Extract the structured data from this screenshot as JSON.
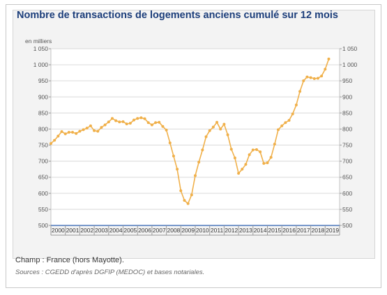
{
  "colors": {
    "line": "#f0b04a",
    "title": "#1b3d7a",
    "grid": "#dadada",
    "axis": "#2a5eb0"
  },
  "chart_data": {
    "type": "line",
    "title": "Nombre de transactions de logements anciens cumulé sur 12 mois",
    "unit_label": "en milliers",
    "y_range": [
      500,
      1050
    ],
    "y_ticks": [
      500,
      550,
      600,
      650,
      700,
      750,
      800,
      850,
      900,
      950,
      1000,
      1050
    ],
    "y_tick_labels": [
      "500",
      "550",
      "600",
      "650",
      "700",
      "750",
      "800",
      "850",
      "900",
      "950",
      "1 000",
      "1 050"
    ],
    "x_range": [
      2000,
      2020
    ],
    "x_labels": [
      "2000",
      "2001",
      "2002",
      "2003",
      "2004",
      "2005",
      "2006",
      "2007",
      "2008",
      "2009",
      "2010",
      "2011",
      "2012",
      "2013",
      "2014",
      "2015",
      "2016",
      "2017",
      "2018",
      "2019"
    ],
    "grid": "horizontal",
    "legend": "none",
    "series": [
      {
        "x": [
          2000.0,
          2000.25,
          2000.5,
          2000.75,
          2001.0,
          2001.25,
          2001.5,
          2001.75,
          2002.0,
          2002.25,
          2002.5,
          2002.75,
          2003.0,
          2003.25,
          2003.5,
          2003.75,
          2004.0,
          2004.25,
          2004.5,
          2004.75,
          2005.0,
          2005.25,
          2005.5,
          2005.75,
          2006.0,
          2006.25,
          2006.5,
          2006.75,
          2007.0,
          2007.25,
          2007.5,
          2007.75,
          2008.0,
          2008.25,
          2008.5,
          2008.75,
          2009.0,
          2009.25,
          2009.5,
          2009.75,
          2010.0,
          2010.25,
          2010.5,
          2010.75,
          2011.0,
          2011.25,
          2011.5,
          2011.75,
          2012.0,
          2012.25,
          2012.5,
          2012.75,
          2013.0,
          2013.25,
          2013.5,
          2013.75,
          2014.0,
          2014.25,
          2014.5,
          2014.75,
          2015.0,
          2015.25,
          2015.5,
          2015.75,
          2016.0,
          2016.25,
          2016.5,
          2016.75,
          2017.0,
          2017.25,
          2017.5,
          2017.75,
          2018.0,
          2018.25,
          2018.5,
          2018.75,
          2019.0,
          2019.25
        ],
        "values": [
          755,
          765,
          778,
          792,
          785,
          790,
          790,
          786,
          793,
          798,
          803,
          810,
          795,
          793,
          805,
          813,
          822,
          833,
          826,
          822,
          823,
          816,
          818,
          828,
          833,
          835,
          832,
          820,
          813,
          820,
          821,
          808,
          797,
          757,
          716,
          675,
          608,
          578,
          568,
          595,
          655,
          697,
          735,
          776,
          795,
          806,
          821,
          800,
          815,
          782,
          737,
          710,
          662,
          675,
          690,
          720,
          735,
          736,
          729,
          693,
          695,
          712,
          753,
          798,
          810,
          820,
          827,
          847,
          875,
          917,
          950,
          962,
          960,
          957,
          958,
          965,
          986,
          1018
        ]
      }
    ]
  },
  "notes": {
    "champ": "Champ : France (hors Mayotte).",
    "sources": "Sources : CGEDD d'après DGFIP (MEDOC) et bases notariales."
  }
}
